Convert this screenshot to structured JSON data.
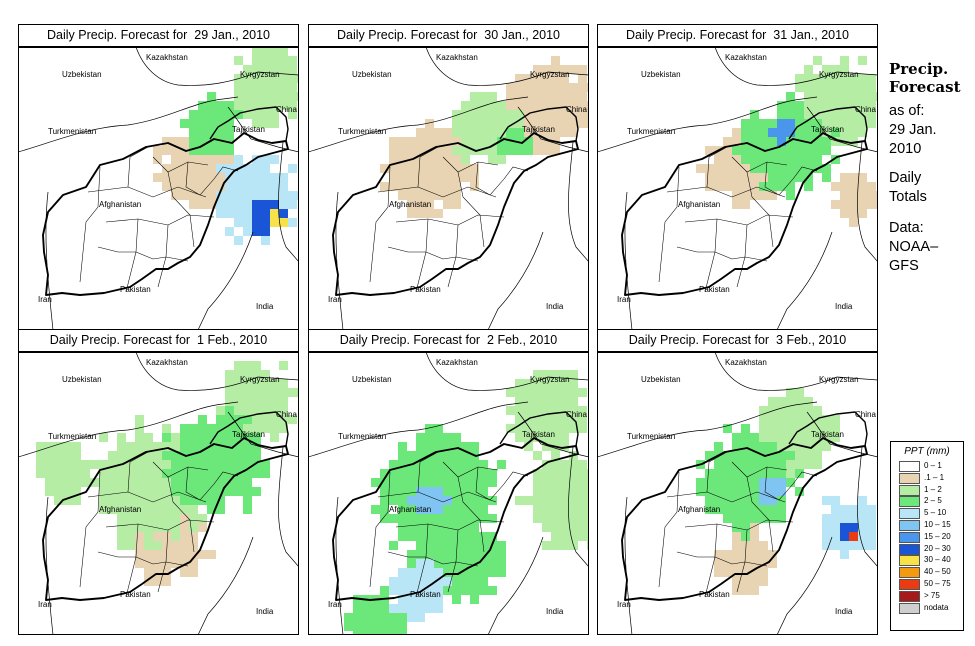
{
  "panels": [
    {
      "title": "Daily Precip. Forecast for  29 Jan., 2010",
      "variant": 0
    },
    {
      "title": "Daily Precip. Forecast for  30 Jan., 2010",
      "variant": 1
    },
    {
      "title": "Daily Precip. Forecast for  31 Jan., 2010",
      "variant": 2
    },
    {
      "title": "Daily Precip. Forecast for  1 Feb., 2010",
      "variant": 3
    },
    {
      "title": "Daily Precip. Forecast for  2 Feb., 2010",
      "variant": 4
    },
    {
      "title": "Daily Precip. Forecast for  3 Feb., 2010",
      "variant": 5
    }
  ],
  "map_labels": {
    "kazakhstan": "Kazakhstan",
    "uzbekistan": "Uzbekistan",
    "kyrgyzstan": "Kyrgyzstan",
    "china": "China",
    "tajikistan": "Tajikistan",
    "turkmenistan": "Turkmenistan",
    "afghanistan": "Afghanistan",
    "pakistan": "Pakistan",
    "iran": "Iran",
    "india": "India"
  },
  "sidebar": {
    "title_line1": "Precip.",
    "title_line2": "Forecast",
    "asof_line1": "as of:",
    "asof_line2": "29 Jan.",
    "asof_line3": "2010",
    "daily_line1": "Daily",
    "daily_line2": "Totals",
    "data_line1": "Data:",
    "data_line2": "NOAA–",
    "data_line3": "GFS"
  },
  "legend": {
    "title": "PPT (mm)",
    "items": [
      {
        "label": "0 – 1",
        "color": "#ffffff"
      },
      {
        "label": ".1 – 1",
        "color": "#e8d3b2"
      },
      {
        "label": "1 – 2",
        "color": "#b5eda5"
      },
      {
        "label": "2 – 5",
        "color": "#6ce77a"
      },
      {
        "label": "5 – 10",
        "color": "#b8e6f7"
      },
      {
        "label": "10 – 15",
        "color": "#80c4f1"
      },
      {
        "label": "15 – 20",
        "color": "#4a96ec"
      },
      {
        "label": "20 – 30",
        "color": "#1a55d8"
      },
      {
        "label": "30 – 40",
        "color": "#f7e24a"
      },
      {
        "label": "40 – 50",
        "color": "#f39a10"
      },
      {
        "label": "50 – 75",
        "color": "#ea3b12"
      },
      {
        "label": "> 75",
        "color": "#a51b1b"
      },
      {
        "label": "nodata",
        "color": "#cfcfcf"
      }
    ]
  }
}
